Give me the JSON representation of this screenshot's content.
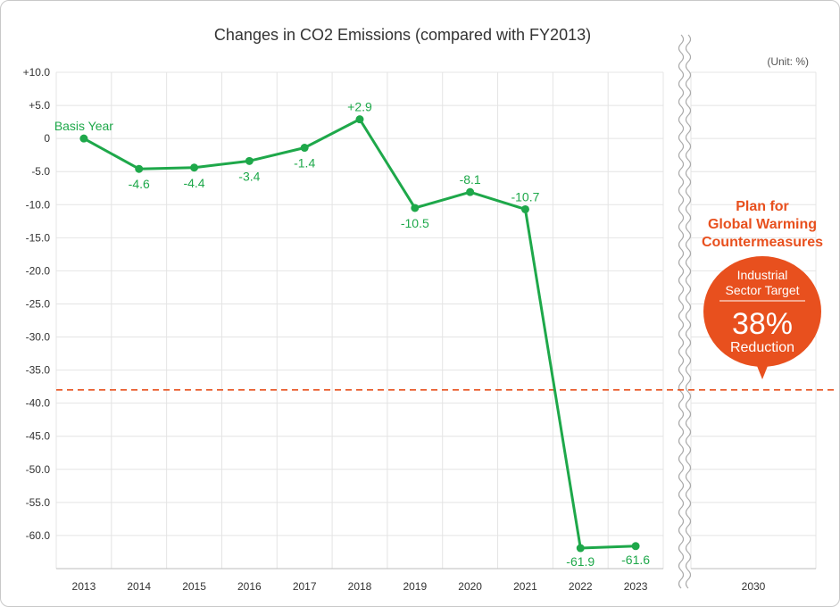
{
  "chart_data": {
    "type": "line",
    "title": "Changes in CO2 Emissions (compared with FY2013)",
    "unit_note": "(Unit: %)",
    "x": [
      "2013",
      "2014",
      "2015",
      "2016",
      "2017",
      "2018",
      "2019",
      "2020",
      "2021",
      "2022",
      "2023"
    ],
    "x_extra": [
      "2030"
    ],
    "y_ticks": [
      "+10.0",
      "+5.0",
      "0",
      "-5.0",
      "-10.0",
      "-15.0",
      "-20.0",
      "-25.0",
      "-30.0",
      "-35.0",
      "-40.0",
      "-45.0",
      "-50.0",
      "-55.0",
      "-60.0"
    ],
    "ylim": [
      -65,
      10
    ],
    "series": [
      {
        "values": [
          0,
          -4.6,
          -4.4,
          -3.4,
          -1.4,
          2.9,
          -10.5,
          -8.1,
          -10.7,
          -61.9,
          -61.6
        ],
        "data_labels": [
          "Basis Year",
          "-4.6",
          "-4.4",
          "-3.4",
          "-1.4",
          "+2.9",
          "-10.5",
          "-8.1",
          "-10.7",
          "-61.9",
          "-61.6"
        ],
        "color": "#1ea84a"
      }
    ],
    "target_line": {
      "value": -38,
      "color": "#e8501e",
      "style": "dashed"
    },
    "grid": true,
    "annotation": {
      "heading": [
        "Plan for",
        "Global Warming",
        "Countermeasures"
      ],
      "bubble_small": [
        "Industrial",
        "Sector Target"
      ],
      "bubble_big": "38%",
      "bubble_bottom": "Reduction",
      "color": "#e8501e"
    }
  }
}
